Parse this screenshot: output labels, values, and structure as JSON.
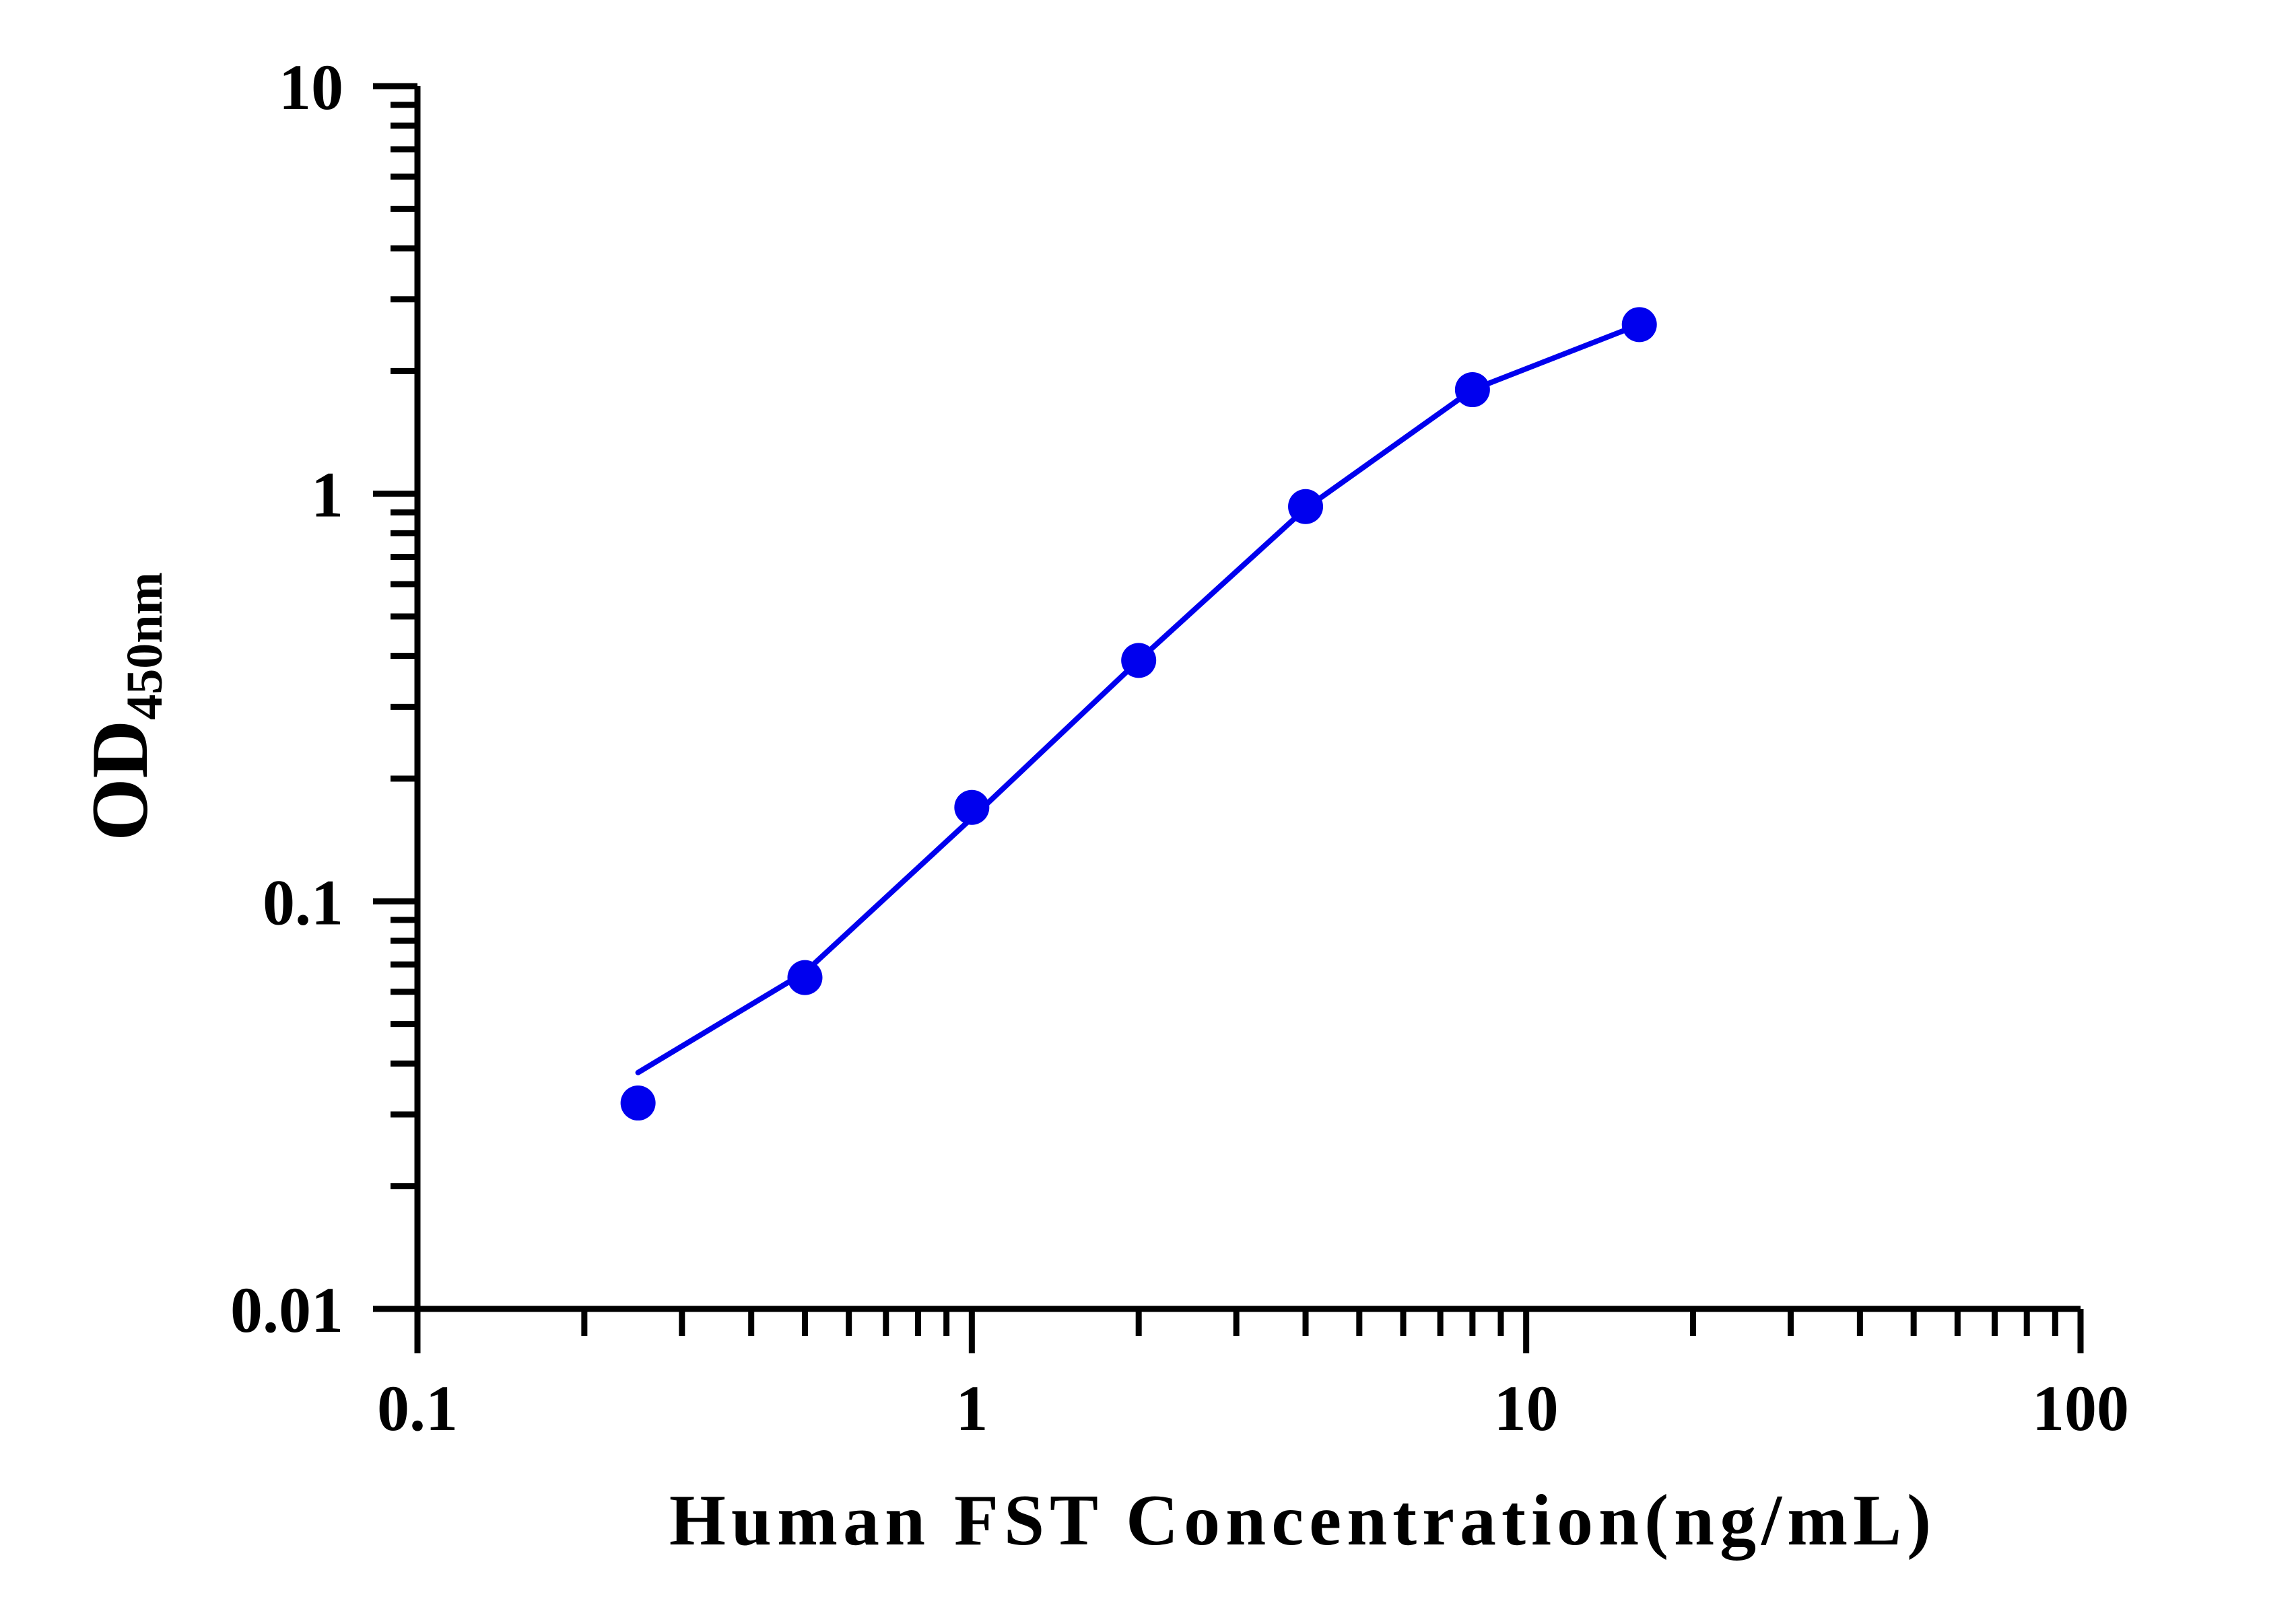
{
  "chart_data": {
    "type": "line",
    "xlabel": "Human FST Concentration(ng/mL)",
    "ylabel_main": "OD",
    "ylabel_sub": "450nm",
    "x_scale": "log",
    "y_scale": "log",
    "xlim": [
      0.1,
      100
    ],
    "ylim": [
      0.01,
      10
    ],
    "x_ticks": [
      0.1,
      1,
      10,
      100
    ],
    "x_tick_labels": [
      "0.1",
      "1",
      "10",
      "100"
    ],
    "y_ticks": [
      0.01,
      0.1,
      1,
      10
    ],
    "y_tick_labels": [
      "0.01",
      "0.1",
      "1",
      "10"
    ],
    "grid": false,
    "legend": "none",
    "series": [
      {
        "color": "#0000ee",
        "points": [
          {
            "x": 0.25,
            "y": 0.032
          },
          {
            "x": 0.5,
            "y": 0.065
          },
          {
            "x": 1,
            "y": 0.17
          },
          {
            "x": 2,
            "y": 0.39
          },
          {
            "x": 4,
            "y": 0.93
          },
          {
            "x": 8,
            "y": 1.8
          },
          {
            "x": 16,
            "y": 2.6
          }
        ],
        "curve": [
          {
            "x": 0.25,
            "y": 0.038
          },
          {
            "x": 0.5,
            "y": 0.067
          },
          {
            "x": 1,
            "y": 0.16
          },
          {
            "x": 2,
            "y": 0.39
          },
          {
            "x": 4,
            "y": 0.92
          },
          {
            "x": 8,
            "y": 1.8
          },
          {
            "x": 16,
            "y": 2.6
          }
        ]
      }
    ]
  }
}
